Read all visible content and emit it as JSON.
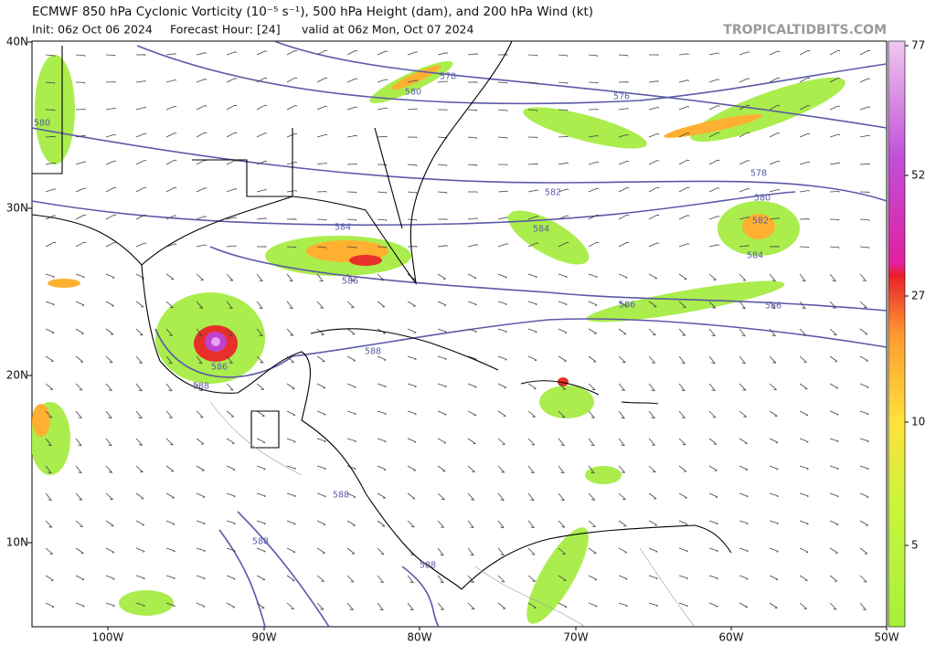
{
  "header": {
    "title": "ECMWF 850 hPa Cyclonic Vorticity (10⁻⁵ s⁻¹), 500 hPa Height (dam), and 200 hPa Wind (kt)",
    "init": "Init: 06z Oct 06 2024",
    "forecast_hour": "Forecast Hour: [24]",
    "valid": "valid at 06z Mon, Oct 07 2024",
    "watermark": "TROPICALTIDBITS.COM"
  },
  "map": {
    "lat_labels": [
      "40N",
      "30N",
      "20N",
      "10N"
    ],
    "lon_labels": [
      "100W",
      "90W",
      "80W",
      "70W",
      "60W",
      "50W"
    ],
    "contour_labels": [
      "578",
      "580",
      "576",
      "580",
      "578",
      "582",
      "580",
      "584",
      "584",
      "582",
      "584",
      "586",
      "586",
      "586",
      "588",
      "586",
      "588",
      "588",
      "588",
      "588"
    ]
  },
  "colorbar": {
    "labels": [
      "77",
      "52",
      "27",
      "10",
      "5"
    ]
  }
}
